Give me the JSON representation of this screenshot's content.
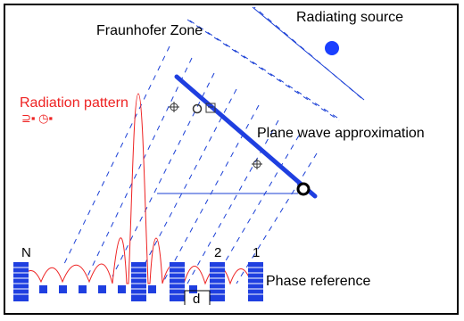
{
  "labels": {
    "fraunhofer_zone": "Fraunhofer Zone",
    "radiating_source": "Radiating source",
    "radiation_pattern": "Radiation pattern",
    "plane_wave": "Plane wave approximation",
    "phase_reference": "Phase reference",
    "element_n": "N",
    "element_2": "2",
    "element_1": "1",
    "spacing": "d"
  },
  "colors": {
    "wave_lines": "#1a3fd6",
    "plane_wave_front": "#1f3fe0",
    "pattern": "#ee2222",
    "source_dot": "#1a3fff",
    "elements": "#1f3fe0",
    "text": "#000000"
  },
  "icons": [
    "lock-pair-icon",
    "crosshair-icon",
    "circle-marker-icon",
    "pin-icon"
  ]
}
